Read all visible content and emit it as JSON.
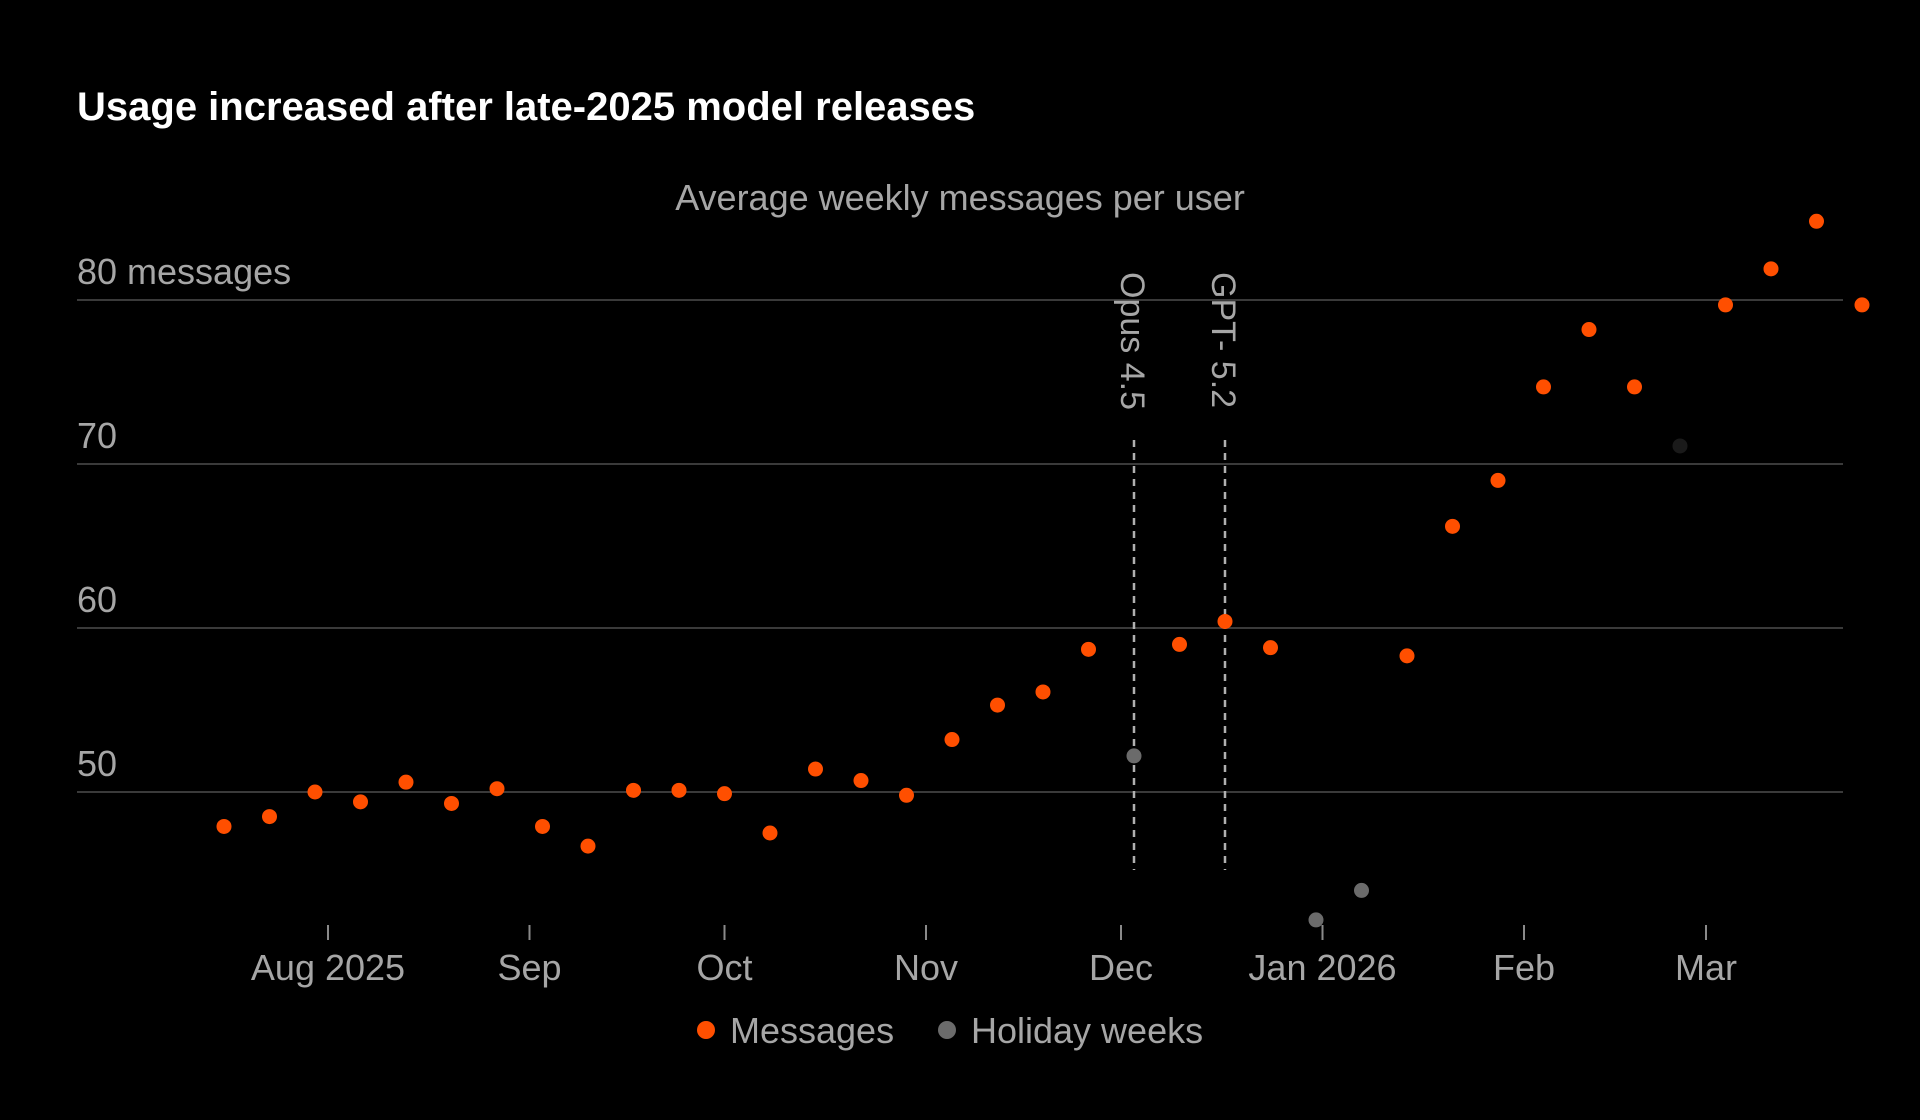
{
  "chart_data": {
    "type": "scatter",
    "title": "Usage increased after late-2025 model releases",
    "subtitle": "Average weekly messages per user",
    "y_unit_label": "messages",
    "ylim": [
      41.5,
      85
    ],
    "y_ticks": [
      50,
      60,
      70,
      80
    ],
    "y_tick_labels": [
      "50",
      "60",
      "70",
      "80 messages"
    ],
    "xlim": [
      "2025-07-02",
      "2026-03-21"
    ],
    "x_ticks": [
      {
        "date": "2025-08-01",
        "label": "Aug 2025"
      },
      {
        "date": "2025-09-01",
        "label": "Sep"
      },
      {
        "date": "2025-10-01",
        "label": "Oct"
      },
      {
        "date": "2025-11-01",
        "label": "Nov"
      },
      {
        "date": "2025-12-01",
        "label": "Dec"
      },
      {
        "date": "2026-01-01",
        "label": "Jan 2026"
      },
      {
        "date": "2026-02-01",
        "label": "Feb"
      },
      {
        "date": "2026-03-01",
        "label": "Mar"
      }
    ],
    "grid": true,
    "legend_position": "bottom-center",
    "series": [
      {
        "name": "Messages",
        "color": "#ff4f00",
        "points": [
          {
            "x": "2025-07-16",
            "y": 47.9
          },
          {
            "x": "2025-07-23",
            "y": 48.5
          },
          {
            "x": "2025-07-30",
            "y": 50.0
          },
          {
            "x": "2025-08-06",
            "y": 49.4
          },
          {
            "x": "2025-08-13",
            "y": 50.6
          },
          {
            "x": "2025-08-20",
            "y": 49.3
          },
          {
            "x": "2025-08-27",
            "y": 50.2
          },
          {
            "x": "2025-09-03",
            "y": 47.9
          },
          {
            "x": "2025-09-10",
            "y": 46.7
          },
          {
            "x": "2025-09-17",
            "y": 50.1
          },
          {
            "x": "2025-09-24",
            "y": 50.1
          },
          {
            "x": "2025-10-01",
            "y": 49.9
          },
          {
            "x": "2025-10-08",
            "y": 47.5
          },
          {
            "x": "2025-10-15",
            "y": 51.4
          },
          {
            "x": "2025-10-22",
            "y": 50.7
          },
          {
            "x": "2025-10-29",
            "y": 49.8
          },
          {
            "x": "2025-11-05",
            "y": 53.2
          },
          {
            "x": "2025-11-12",
            "y": 55.3
          },
          {
            "x": "2025-11-19",
            "y": 56.1
          },
          {
            "x": "2025-11-26",
            "y": 58.7
          },
          {
            "x": "2025-12-10",
            "y": 59.0
          },
          {
            "x": "2025-12-17",
            "y": 60.4
          },
          {
            "x": "2025-12-24",
            "y": 58.8
          },
          {
            "x": "2026-01-14",
            "y": 58.3
          },
          {
            "x": "2026-01-21",
            "y": 66.2
          },
          {
            "x": "2026-01-28",
            "y": 69.0
          },
          {
            "x": "2026-02-04",
            "y": 74.7
          },
          {
            "x": "2026-02-11",
            "y": 78.2
          },
          {
            "x": "2026-02-18",
            "y": 74.7
          },
          {
            "x": "2026-03-04",
            "y": 79.7
          },
          {
            "x": "2026-03-11",
            "y": 81.9
          },
          {
            "x": "2026-03-18",
            "y": 84.8
          },
          {
            "x": "2026-03-25",
            "y": 79.7
          }
        ]
      },
      {
        "name": "Holiday weeks",
        "color": "#6b6b6b",
        "points": [
          {
            "x": "2025-12-03",
            "y": 52.2
          },
          {
            "x": "2025-12-31",
            "y": 42.2
          },
          {
            "x": "2026-01-07",
            "y": 44.0
          },
          {
            "x": "2026-02-25",
            "y": 71.1,
            "color": "#1a1a1a"
          }
        ]
      }
    ],
    "annotations": [
      {
        "type": "vline",
        "x": "2025-12-03",
        "label": "Opus 4.5"
      },
      {
        "type": "vline",
        "x": "2025-12-17",
        "label": "GPT- 5.2"
      }
    ]
  }
}
